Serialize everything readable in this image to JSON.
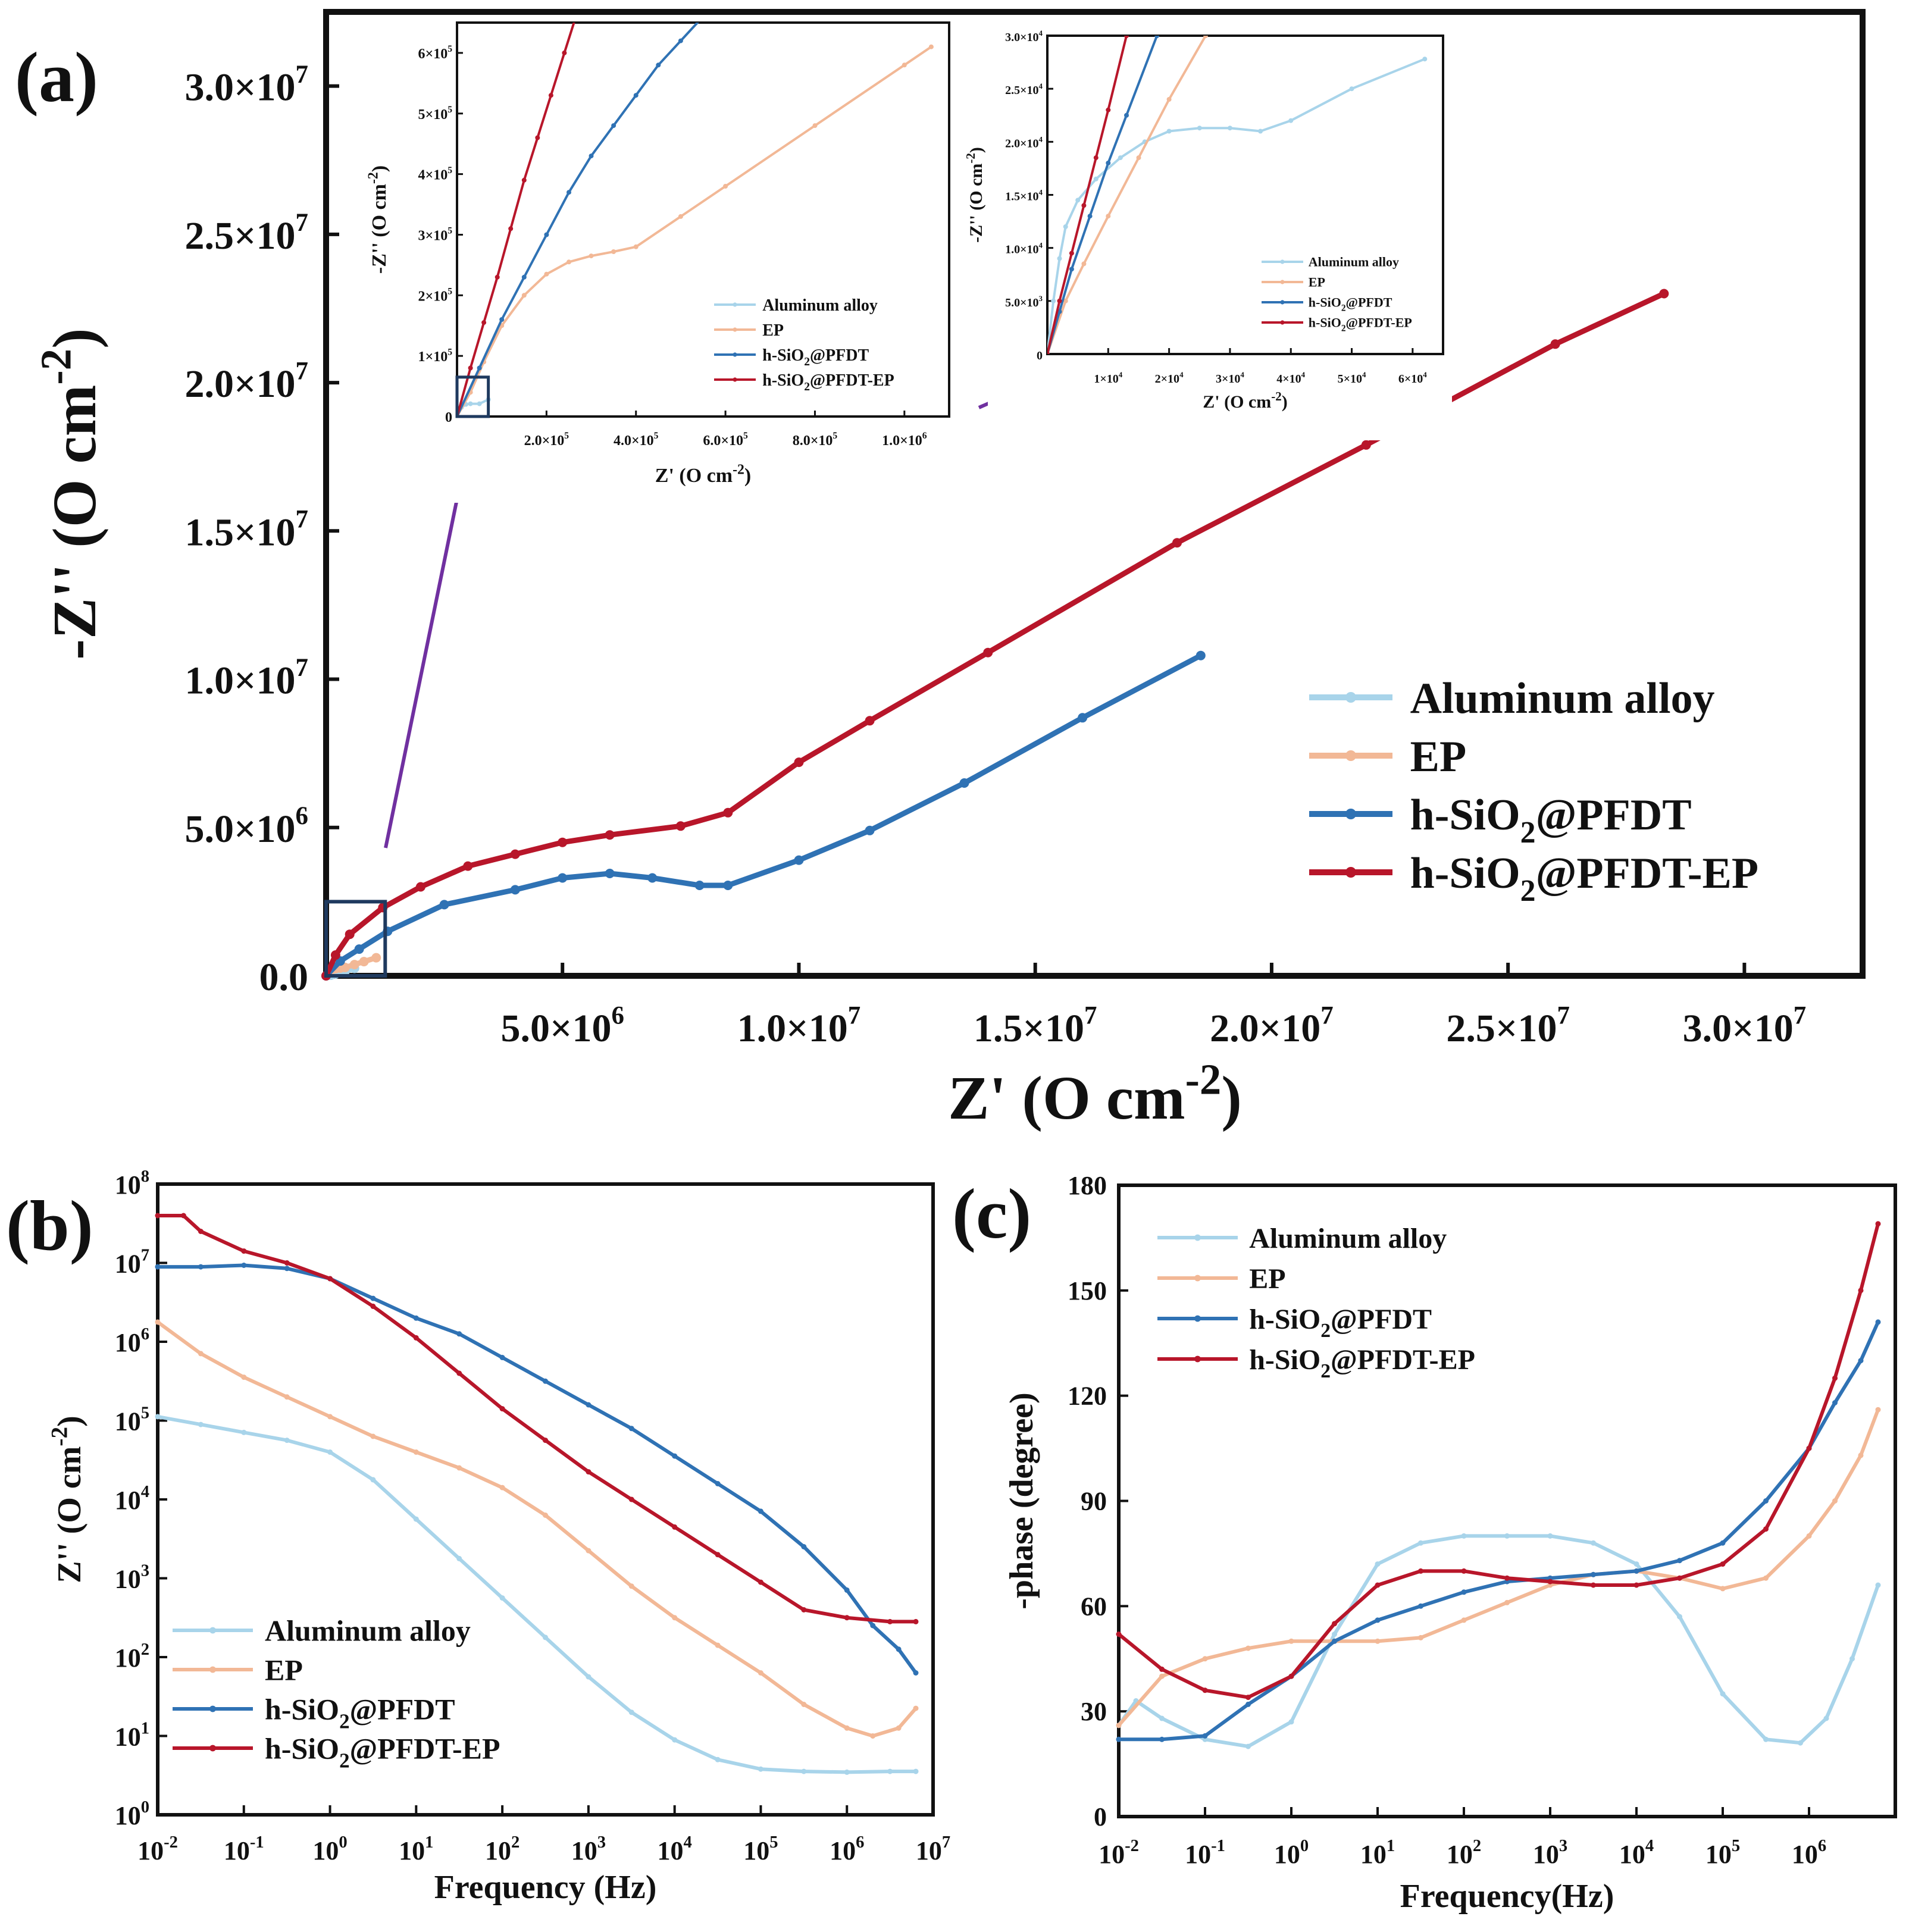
{
  "colors": {
    "Aluminum alloy": "#a8d4ea",
    "EP": "#f2b896",
    "h-SiO2@PFDT": "#2f72b4",
    "h-SiO2@PFDT-EP": "#b8162a",
    "arrow": "#7030a0",
    "zoom_box": "#1f3a5f"
  },
  "legend_entries": [
    {
      "key": "Aluminum alloy",
      "text": "Aluminum alloy"
    },
    {
      "key": "EP",
      "text": "EP"
    },
    {
      "key": "h-SiO2@PFDT",
      "text": "h-SiO",
      "sub": "2",
      "tail": "@PFDT"
    },
    {
      "key": "h-SiO2@PFDT-EP",
      "text": "h-SiO",
      "sub": "2",
      "tail": "@PFDT-EP"
    }
  ],
  "chart_data": [
    {
      "id": "a",
      "panel_label": "(a)",
      "type": "line",
      "subtype": "nyquist",
      "xlabel": "Z' (O cm",
      "xlabel_sup": "-2",
      "xlabel_close": ")",
      "ylabel": "-Z'' (O cm",
      "ylabel_sup": "-2",
      "ylabel_close": ")",
      "xlim": [
        0,
        32500000.0
      ],
      "ylim": [
        0,
        32500000.0
      ],
      "x_ticks": [
        5000000.0,
        10000000.0,
        15000000.0,
        20000000.0,
        25000000.0,
        30000000.0
      ],
      "x_tick_labels": [
        {
          "m": "5.0",
          "e": "6"
        },
        {
          "m": "1.0",
          "e": "7"
        },
        {
          "m": "1.5",
          "e": "7"
        },
        {
          "m": "2.0",
          "e": "7"
        },
        {
          "m": "2.5",
          "e": "7"
        },
        {
          "m": "3.0",
          "e": "7"
        }
      ],
      "y_ticks": [
        0,
        5000000.0,
        10000000.0,
        15000000.0,
        20000000.0,
        25000000.0,
        30000000.0
      ],
      "y_tick_labels": [
        {
          "m": "0.0",
          "e": ""
        },
        {
          "m": "5.0",
          "e": "6"
        },
        {
          "m": "1.0",
          "e": "7"
        },
        {
          "m": "1.5",
          "e": "7"
        },
        {
          "m": "2.0",
          "e": "7"
        },
        {
          "m": "2.5",
          "e": "7"
        },
        {
          "m": "3.0",
          "e": "7"
        }
      ],
      "series": [
        {
          "name": "Aluminum alloy",
          "x": [
            0,
            20000,
            40000,
            100000,
            200000,
            400000,
            600000
          ],
          "y": [
            0,
            20000,
            21000,
            21000,
            60000,
            150000,
            250000
          ]
        },
        {
          "name": "EP",
          "x": [
            0,
            100000,
            200000,
            300000,
            400000,
            600000,
            800000,
            1060000
          ],
          "y": [
            0,
            180000,
            240000,
            260000,
            280000,
            380000,
            480000,
            610000
          ]
        },
        {
          "name": "h-SiO2@PFDT",
          "x": [
            0,
            300000,
            700000,
            1300000,
            2500000,
            4000000,
            5000000,
            6000000,
            6900000,
            7900000,
            8500000,
            10000000,
            11500000,
            13500000,
            16000000,
            18500000
          ],
          "y": [
            0,
            500000,
            900000,
            1500000,
            2400000,
            2900000,
            3300000,
            3450000,
            3300000,
            3050000,
            3050000,
            3900000,
            4900000,
            6500000,
            8700000,
            10800000
          ]
        },
        {
          "name": "h-SiO2@PFDT-EP",
          "x": [
            0,
            200000,
            500000,
            1200000,
            2000000,
            3000000,
            4000000,
            5000000,
            6000000,
            7500000,
            8500000,
            10000000,
            11500000,
            14000000,
            18000000,
            22000000,
            26000000,
            28300000
          ],
          "y": [
            0,
            700000,
            1400000,
            2300000,
            3000000,
            3700000,
            4100000,
            4500000,
            4750000,
            5050000,
            5500000,
            7200000,
            8600000,
            10900000,
            14600000,
            17900000,
            21300000,
            23000000
          ]
        }
      ]
    },
    {
      "id": "a_inset1",
      "type": "line",
      "xlabel": "Z' (O cm",
      "xlabel_sup": "-2",
      "xlabel_close": ")",
      "ylabel": "-Z'' (O cm",
      "ylabel_sup": "-2",
      "ylabel_close": ")",
      "xlim": [
        0,
        1100000.0
      ],
      "ylim": [
        0,
        650000.0
      ],
      "x_ticks": [
        200000.0,
        400000.0,
        600000.0,
        800000.0,
        1000000.0
      ],
      "x_tick_labels": [
        {
          "m": "2.0",
          "e": "5"
        },
        {
          "m": "4.0",
          "e": "5"
        },
        {
          "m": "6.0",
          "e": "5"
        },
        {
          "m": "8.0",
          "e": "5"
        },
        {
          "m": "1.0",
          "e": "6"
        }
      ],
      "y_ticks": [
        0,
        100000.0,
        200000.0,
        300000.0,
        400000.0,
        500000.0,
        600000.0
      ],
      "y_tick_labels": [
        {
          "m": "0",
          "e": ""
        },
        {
          "m": "1",
          "e": "5"
        },
        {
          "m": "2",
          "e": "5"
        },
        {
          "m": "3",
          "e": "5"
        },
        {
          "m": "4",
          "e": "5"
        },
        {
          "m": "5",
          "e": "5"
        },
        {
          "m": "6",
          "e": "5"
        }
      ],
      "series": [
        {
          "name": "Aluminum alloy",
          "x": [
            0,
            10000,
            20000,
            30000,
            50000,
            70000
          ],
          "y": [
            0,
            15000,
            20000,
            21000,
            21000,
            28000
          ]
        },
        {
          "name": "EP",
          "x": [
            0,
            30000,
            60000,
            100000,
            150000,
            200000,
            250000,
            300000,
            350000,
            400000,
            500000,
            600000,
            800000,
            1000000,
            1060000
          ],
          "y": [
            0,
            40000,
            90000,
            150000,
            200000,
            235000,
            255000,
            265000,
            272000,
            280000,
            330000,
            380000,
            480000,
            580000,
            610000
          ]
        },
        {
          "name": "h-SiO2@PFDT",
          "x": [
            0,
            50000,
            100000,
            150000,
            200000,
            250000,
            300000,
            350000,
            400000,
            450000,
            500000,
            550000
          ],
          "y": [
            0,
            80000,
            160000,
            230000,
            300000,
            370000,
            430000,
            480000,
            530000,
            580000,
            620000,
            660000
          ]
        },
        {
          "name": "h-SiO2@PFDT-EP",
          "x": [
            0,
            30000,
            60000,
            90000,
            120000,
            150000,
            180000,
            210000,
            240000,
            270000
          ],
          "y": [
            0,
            80000,
            155000,
            230000,
            310000,
            390000,
            460000,
            530000,
            600000,
            670000
          ]
        }
      ]
    },
    {
      "id": "a_inset2",
      "type": "line",
      "xlabel": "Z' (O cm",
      "xlabel_sup": "-2",
      "xlabel_close": ")",
      "ylabel": "-Z'' (O cm",
      "ylabel_sup": "-2",
      "ylabel_close": ")",
      "xlim": [
        0,
        65000.0
      ],
      "ylim": [
        0,
        30000.0
      ],
      "x_ticks": [
        10000.0,
        20000.0,
        30000.0,
        40000.0,
        50000.0,
        60000.0
      ],
      "x_tick_labels": [
        {
          "m": "1",
          "e": "4"
        },
        {
          "m": "2",
          "e": "4"
        },
        {
          "m": "3",
          "e": "4"
        },
        {
          "m": "4",
          "e": "4"
        },
        {
          "m": "5",
          "e": "4"
        },
        {
          "m": "6",
          "e": "4"
        }
      ],
      "y_ticks": [
        0,
        5000.0,
        10000.0,
        15000.0,
        20000.0,
        25000.0,
        30000.0
      ],
      "y_tick_labels": [
        {
          "m": "0",
          "e": ""
        },
        {
          "m": "5.0",
          "e": "3"
        },
        {
          "m": "1.0",
          "e": "4"
        },
        {
          "m": "1.5",
          "e": "4"
        },
        {
          "m": "2.0",
          "e": "4"
        },
        {
          "m": "2.5",
          "e": "4"
        },
        {
          "m": "3.0",
          "e": "4"
        }
      ],
      "series": [
        {
          "name": "Aluminum alloy",
          "x": [
            0,
            1000,
            2000,
            3000,
            5000,
            8000,
            12000,
            16000,
            20000,
            25000,
            30000,
            35000,
            40000,
            50000,
            62000
          ],
          "y": [
            0,
            5000,
            9000,
            12000,
            14500,
            16500,
            18500,
            20000,
            21000,
            21300,
            21300,
            21000,
            22000,
            25000,
            27800
          ]
        },
        {
          "name": "EP",
          "x": [
            0,
            3000,
            6000,
            10000,
            15000,
            20000,
            26000
          ],
          "y": [
            0,
            5000,
            8500,
            13000,
            18500,
            24000,
            30000
          ]
        },
        {
          "name": "h-SiO2@PFDT",
          "x": [
            0,
            2000,
            4000,
            7000,
            10000,
            13000,
            18000
          ],
          "y": [
            0,
            4000,
            8000,
            13000,
            18000,
            22500,
            30000
          ]
        },
        {
          "name": "h-SiO2@PFDT-EP",
          "x": [
            0,
            2000,
            4000,
            6000,
            8000,
            10000,
            13000
          ],
          "y": [
            0,
            5000,
            9500,
            14000,
            18500,
            23000,
            30000
          ]
        }
      ]
    },
    {
      "id": "b",
      "panel_label": "(b)",
      "type": "line",
      "subtype": "bode-modulus",
      "xlabel": "Frequency (Hz)",
      "ylabel": "Z'' (O cm",
      "ylabel_sup": "-2",
      "ylabel_close": ")",
      "xscale": "log",
      "yscale": "log",
      "xlim_log10": [
        -2,
        7
      ],
      "ylim_log10": [
        0,
        8
      ],
      "x_tick_exponents": [
        "-2",
        "-1",
        "0",
        "1",
        "2",
        "3",
        "4",
        "5",
        "6",
        "7"
      ],
      "y_tick_exponents": [
        "0",
        "1",
        "2",
        "3",
        "4",
        "5",
        "6",
        "7",
        "8"
      ],
      "tick_base": "10",
      "series": [
        {
          "name": "Aluminum alloy",
          "log10_f": [
            -2,
            -1.5,
            -1,
            -0.5,
            0,
            0.5,
            1,
            1.5,
            2,
            2.5,
            3,
            3.5,
            4,
            4.5,
            5,
            5.5,
            6,
            6.5,
            6.8
          ],
          "log10_z": [
            5.05,
            4.95,
            4.85,
            4.75,
            4.6,
            4.25,
            3.75,
            3.25,
            2.75,
            2.25,
            1.75,
            1.3,
            0.95,
            0.7,
            0.58,
            0.55,
            0.54,
            0.55,
            0.55
          ]
        },
        {
          "name": "EP",
          "log10_f": [
            -2,
            -1.5,
            -1,
            -0.5,
            0,
            0.5,
            1,
            1.5,
            2,
            2.5,
            3,
            3.5,
            4,
            4.5,
            5,
            5.5,
            6,
            6.3,
            6.6,
            6.8
          ],
          "log10_z": [
            6.25,
            5.85,
            5.55,
            5.3,
            5.05,
            4.8,
            4.6,
            4.4,
            4.15,
            3.8,
            3.35,
            2.9,
            2.5,
            2.15,
            1.8,
            1.4,
            1.1,
            1.0,
            1.1,
            1.35
          ]
        },
        {
          "name": "h-SiO2@PFDT",
          "log10_f": [
            -2,
            -1.5,
            -1,
            -0.5,
            0,
            0.5,
            1,
            1.5,
            2,
            2.5,
            3,
            3.5,
            4,
            4.5,
            5,
            5.5,
            6,
            6.3,
            6.6,
            6.8
          ],
          "log10_z": [
            6.95,
            6.95,
            6.97,
            6.93,
            6.8,
            6.55,
            6.3,
            6.1,
            5.8,
            5.5,
            5.2,
            4.9,
            4.55,
            4.2,
            3.85,
            3.4,
            2.85,
            2.4,
            2.1,
            1.8
          ]
        },
        {
          "name": "h-SiO2@PFDT-EP",
          "log10_f": [
            -2,
            -1.7,
            -1.5,
            -1,
            -0.5,
            0,
            0.5,
            1,
            1.5,
            2,
            2.5,
            3,
            3.5,
            4,
            4.5,
            5,
            5.5,
            6,
            6.5,
            6.8
          ],
          "log10_z": [
            7.6,
            7.6,
            7.4,
            7.15,
            7.0,
            6.8,
            6.45,
            6.05,
            5.6,
            5.15,
            4.75,
            4.35,
            4.0,
            3.65,
            3.3,
            2.95,
            2.6,
            2.5,
            2.45,
            2.45
          ]
        }
      ]
    },
    {
      "id": "c",
      "panel_label": "(c)",
      "type": "line",
      "subtype": "bode-phase",
      "xlabel": "Frequency(Hz)",
      "ylabel": "-phase (degree)",
      "xscale": "log",
      "xlim_log10": [
        -2,
        7
      ],
      "ylim": [
        0,
        180
      ],
      "x_tick_exponents": [
        "-2",
        "-1",
        "0",
        "1",
        "2",
        "3",
        "4",
        "5",
        "6"
      ],
      "tick_base": "10",
      "y_ticks": [
        0,
        30,
        60,
        90,
        120,
        150,
        180
      ],
      "y_tick_labels": [
        "0",
        "30",
        "60",
        "90",
        "120",
        "150",
        "180"
      ],
      "series": [
        {
          "name": "Aluminum alloy",
          "log10_f": [
            -2,
            -1.8,
            -1.5,
            -1,
            -0.5,
            0,
            0.5,
            1,
            1.5,
            2,
            2.5,
            3,
            3.5,
            4,
            4.5,
            5,
            5.5,
            5.9,
            6.2,
            6.5,
            6.8
          ],
          "phase": [
            26,
            33,
            28,
            22,
            20,
            27,
            52,
            72,
            78,
            80,
            80,
            80,
            78,
            72,
            57,
            35,
            22,
            21,
            28,
            45,
            66
          ]
        },
        {
          "name": "EP",
          "log10_f": [
            -2,
            -1.5,
            -1,
            -0.5,
            0,
            0.5,
            1,
            1.5,
            2,
            2.5,
            3,
            3.5,
            4,
            4.5,
            5,
            5.5,
            6,
            6.3,
            6.6,
            6.8
          ],
          "phase": [
            26,
            40,
            45,
            48,
            50,
            50,
            50,
            51,
            56,
            61,
            66,
            69,
            70,
            68,
            65,
            68,
            80,
            90,
            103,
            116
          ]
        },
        {
          "name": "h-SiO2@PFDT",
          "log10_f": [
            -2,
            -1.5,
            -1,
            -0.5,
            0,
            0.5,
            1,
            1.5,
            2,
            2.5,
            3,
            3.5,
            4,
            4.5,
            5,
            5.5,
            6,
            6.3,
            6.6,
            6.8
          ],
          "phase": [
            22,
            22,
            23,
            32,
            40,
            50,
            56,
            60,
            64,
            67,
            68,
            69,
            70,
            73,
            78,
            90,
            105,
            118,
            130,
            141
          ]
        },
        {
          "name": "h-SiO2@PFDT-EP",
          "log10_f": [
            -2,
            -1.5,
            -1,
            -0.5,
            0,
            0.5,
            1,
            1.5,
            2,
            2.5,
            3,
            3.5,
            4,
            4.5,
            5,
            5.5,
            6,
            6.3,
            6.6,
            6.8
          ],
          "phase": [
            52,
            42,
            36,
            34,
            40,
            55,
            66,
            70,
            70,
            68,
            67,
            66,
            66,
            68,
            72,
            82,
            105,
            125,
            150,
            169
          ]
        }
      ]
    }
  ]
}
